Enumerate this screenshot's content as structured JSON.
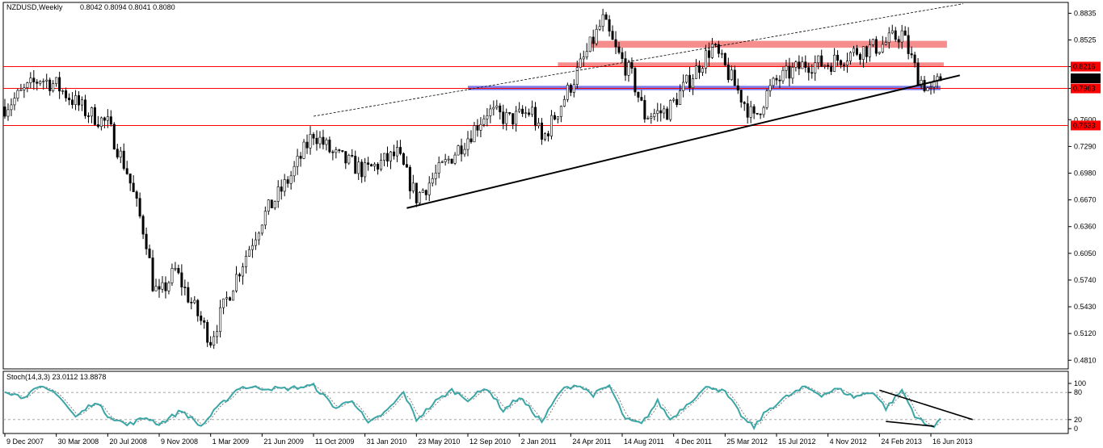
{
  "header": {
    "symbol": "NZDUSD,Weekly",
    "ohlc": "0.8042 0.8094 0.8041 0.8080"
  },
  "stoch": {
    "label": "Stoch(14,3,3) 23.0112 13.8878",
    "levels": [
      "100",
      "80",
      "20",
      "0"
    ]
  },
  "colors": {
    "background": "#ffffff",
    "candle_up": "#000000",
    "candle_down": "#000000",
    "hline": "#ff0000",
    "red_zone": "#f47a7a",
    "blue_zone": "#5a5ae6",
    "stoch_main": "#3aa6a6",
    "stoch_signal": "#666666",
    "current_price_bg": "#000000"
  },
  "chart_data": {
    "type": "candlestick",
    "symbol": "NZDUSD",
    "timeframe": "Weekly",
    "y_ticks": [
      "0.8835",
      "0.8525",
      "0.8216",
      "0.7963",
      "0.7600",
      "0.7290",
      "0.6980",
      "0.6670",
      "0.6360",
      "0.6050",
      "0.5740",
      "0.5430",
      "0.5120",
      "0.4810"
    ],
    "x_ticks": [
      "9 Dec 2007",
      "30 Mar 2008",
      "20 Jul 2008",
      "9 Nov 2008",
      "1 Mar 2009",
      "21 Jun 2009",
      "11 Oct 2009",
      "31 Jan 2010",
      "23 May 2010",
      "12 Sep 2010",
      "2 Jan 2011",
      "24 Apr 2011",
      "14 Aug 2011",
      "4 Dec 2011",
      "25 Mar 2012",
      "15 Jul 2012",
      "4 Nov 2012",
      "24 Feb 2013",
      "16 Jun 2013"
    ],
    "ylim": [
      0.47,
      0.8945
    ],
    "horizontal_lines": [
      {
        "price": 0.8216,
        "label": "0.8216"
      },
      {
        "price": 0.7963,
        "label": "0.7963"
      },
      {
        "price": 0.7533,
        "label": "0.7533"
      }
    ],
    "current_price": {
      "price": 0.808,
      "label": "0.8080"
    },
    "zones": [
      {
        "kind": "red",
        "from_date": "2011-06-05",
        "to_date": "2013-07-21",
        "price_low": 0.8435,
        "price_high": 0.8515
      },
      {
        "kind": "red",
        "from_date": "2011-03-27",
        "to_date": "2013-07-14",
        "price_low": 0.8215,
        "price_high": 0.8265
      },
      {
        "kind": "blue",
        "from_date": "2010-09-12",
        "to_date": "2013-07-07",
        "price_low": 0.7943,
        "price_high": 0.7993
      }
    ],
    "trendlines": [
      {
        "style": "solid",
        "from": [
          "2010-05-02",
          0.6575
        ],
        "to": [
          "2013-08-18",
          0.8115
        ]
      },
      {
        "style": "dashed",
        "from": [
          "2009-10-11",
          0.764
        ],
        "to": [
          "2013-08-25",
          0.8945
        ]
      }
    ],
    "anchors": [
      {
        "date": "2007-12-09",
        "price": 0.775
      },
      {
        "date": "2008-02-24",
        "price": 0.808
      },
      {
        "date": "2008-03-30",
        "price": 0.8
      },
      {
        "date": "2008-06-01",
        "price": 0.77
      },
      {
        "date": "2008-07-20",
        "price": 0.755
      },
      {
        "date": "2008-08-31",
        "price": 0.7
      },
      {
        "date": "2008-10-12",
        "price": 0.62
      },
      {
        "date": "2008-10-26",
        "price": 0.57
      },
      {
        "date": "2008-11-09",
        "price": 0.555
      },
      {
        "date": "2008-12-14",
        "price": 0.585
      },
      {
        "date": "2009-01-11",
        "price": 0.555
      },
      {
        "date": "2009-03-01",
        "price": 0.505
      },
      {
        "date": "2009-04-19",
        "price": 0.57
      },
      {
        "date": "2009-06-21",
        "price": 0.645
      },
      {
        "date": "2009-08-23",
        "price": 0.695
      },
      {
        "date": "2009-10-11",
        "price": 0.745
      },
      {
        "date": "2009-11-22",
        "price": 0.72
      },
      {
        "date": "2010-01-31",
        "price": 0.7
      },
      {
        "date": "2010-04-11",
        "price": 0.72
      },
      {
        "date": "2010-05-23",
        "price": 0.67
      },
      {
        "date": "2010-07-11",
        "price": 0.7
      },
      {
        "date": "2010-09-12",
        "price": 0.74
      },
      {
        "date": "2010-10-24",
        "price": 0.77
      },
      {
        "date": "2010-12-12",
        "price": 0.76
      },
      {
        "date": "2011-01-30",
        "price": 0.77
      },
      {
        "date": "2011-02-20",
        "price": 0.735
      },
      {
        "date": "2011-04-24",
        "price": 0.8
      },
      {
        "date": "2011-07-03",
        "price": 0.875
      },
      {
        "date": "2011-07-31",
        "price": 0.84
      },
      {
        "date": "2011-09-04",
        "price": 0.81
      },
      {
        "date": "2011-10-02",
        "price": 0.765
      },
      {
        "date": "2011-11-20",
        "price": 0.77
      },
      {
        "date": "2011-12-04",
        "price": 0.78
      },
      {
        "date": "2012-02-26",
        "price": 0.845
      },
      {
        "date": "2012-03-25",
        "price": 0.82
      },
      {
        "date": "2012-05-27",
        "price": 0.76
      },
      {
        "date": "2012-06-24",
        "price": 0.79
      },
      {
        "date": "2012-07-15",
        "price": 0.805
      },
      {
        "date": "2012-09-16",
        "price": 0.825
      },
      {
        "date": "2012-11-04",
        "price": 0.825
      },
      {
        "date": "2013-01-06",
        "price": 0.84
      },
      {
        "date": "2013-02-24",
        "price": 0.845
      },
      {
        "date": "2013-04-14",
        "price": 0.86
      },
      {
        "date": "2013-05-19",
        "price": 0.81
      },
      {
        "date": "2013-06-16",
        "price": 0.792
      },
      {
        "date": "2013-07-07",
        "price": 0.808
      }
    ],
    "stochastic": {
      "params": "14,3,3",
      "main_last": 23.0112,
      "signal_last": 13.8878,
      "levels": [
        0,
        20,
        80,
        100
      ],
      "anchors": [
        {
          "date": "2007-12-09",
          "value": 85
        },
        {
          "date": "2008-01-13",
          "value": 70
        },
        {
          "date": "2008-02-24",
          "value": 90
        },
        {
          "date": "2008-03-30",
          "value": 80
        },
        {
          "date": "2008-05-11",
          "value": 25
        },
        {
          "date": "2008-06-22",
          "value": 60
        },
        {
          "date": "2008-07-20",
          "value": 30
        },
        {
          "date": "2008-08-31",
          "value": 8
        },
        {
          "date": "2008-10-12",
          "value": 25
        },
        {
          "date": "2008-11-09",
          "value": 10
        },
        {
          "date": "2008-12-28",
          "value": 40
        },
        {
          "date": "2009-02-08",
          "value": 5
        },
        {
          "date": "2009-03-15",
          "value": 45
        },
        {
          "date": "2009-05-03",
          "value": 92
        },
        {
          "date": "2009-08-09",
          "value": 88
        },
        {
          "date": "2009-10-11",
          "value": 95
        },
        {
          "date": "2009-11-29",
          "value": 45
        },
        {
          "date": "2010-01-03",
          "value": 65
        },
        {
          "date": "2010-02-07",
          "value": 10
        },
        {
          "date": "2010-03-21",
          "value": 40
        },
        {
          "date": "2010-04-25",
          "value": 80
        },
        {
          "date": "2010-05-23",
          "value": 20
        },
        {
          "date": "2010-07-04",
          "value": 60
        },
        {
          "date": "2010-08-08",
          "value": 85
        },
        {
          "date": "2010-09-12",
          "value": 65
        },
        {
          "date": "2010-10-24",
          "value": 90
        },
        {
          "date": "2010-11-28",
          "value": 40
        },
        {
          "date": "2011-01-02",
          "value": 70
        },
        {
          "date": "2011-02-20",
          "value": 15
        },
        {
          "date": "2011-04-03",
          "value": 85
        },
        {
          "date": "2011-05-08",
          "value": 98
        },
        {
          "date": "2011-06-12",
          "value": 75
        },
        {
          "date": "2011-07-17",
          "value": 95
        },
        {
          "date": "2011-08-21",
          "value": 20
        },
        {
          "date": "2011-09-25",
          "value": 10
        },
        {
          "date": "2011-10-30",
          "value": 60
        },
        {
          "date": "2011-11-27",
          "value": 20
        },
        {
          "date": "2012-01-08",
          "value": 60
        },
        {
          "date": "2012-02-19",
          "value": 95
        },
        {
          "date": "2012-03-25",
          "value": 80
        },
        {
          "date": "2012-05-06",
          "value": 20
        },
        {
          "date": "2012-05-27",
          "value": 3
        },
        {
          "date": "2012-06-24",
          "value": 40
        },
        {
          "date": "2012-08-05",
          "value": 70
        },
        {
          "date": "2012-09-16",
          "value": 92
        },
        {
          "date": "2012-10-21",
          "value": 75
        },
        {
          "date": "2012-11-25",
          "value": 88
        },
        {
          "date": "2012-12-30",
          "value": 70
        },
        {
          "date": "2013-02-10",
          "value": 82
        },
        {
          "date": "2013-03-10",
          "value": 45
        },
        {
          "date": "2013-04-14",
          "value": 85
        },
        {
          "date": "2013-05-12",
          "value": 30
        },
        {
          "date": "2013-06-09",
          "value": 5
        },
        {
          "date": "2013-06-23",
          "value": 8
        },
        {
          "date": "2013-07-07",
          "value": 23
        }
      ],
      "trendlines": [
        {
          "from": [
            "2013-02-24",
            85
          ],
          "to": [
            "2013-09-15",
            20
          ]
        },
        {
          "from": [
            "2013-03-10",
            16
          ],
          "to": [
            "2013-06-23",
            5
          ]
        }
      ]
    }
  }
}
